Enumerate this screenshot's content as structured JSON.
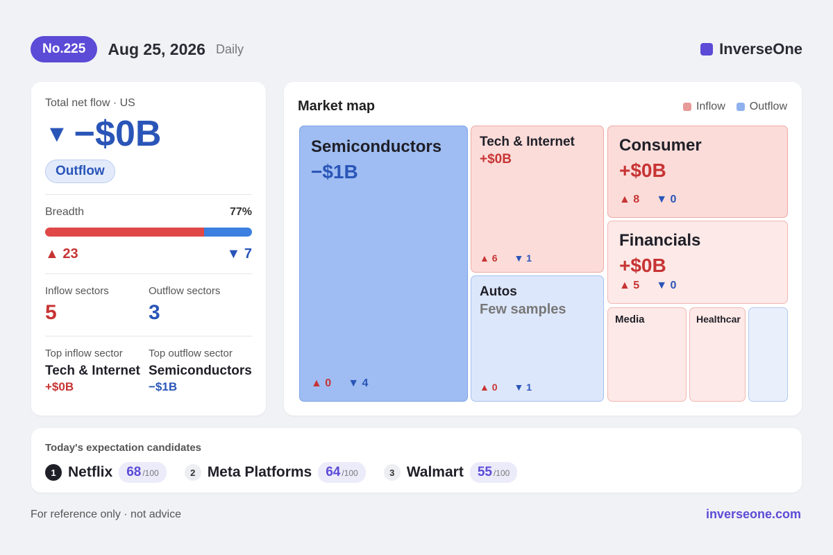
{
  "header": {
    "issue_no": "No.225",
    "date": "Aug 25, 2026",
    "period": "Daily",
    "brand": "InverseOne",
    "brand_color": "#5b4bd6"
  },
  "summary": {
    "label": "Total net flow · US",
    "direction_icon": "triangle-down-icon",
    "arrow": "▼",
    "value": "−$0B",
    "badge": "Outflow",
    "breadth_label": "Breadth",
    "breadth_pct": "77%",
    "breadth_fraction": 0.77,
    "up_arrow": "▲",
    "down_arrow": "▼",
    "up_count": "23",
    "down_count": "7",
    "inflow_sectors_label": "Inflow sectors",
    "inflow_sectors": "5",
    "outflow_sectors_label": "Outflow sectors",
    "outflow_sectors": "3",
    "top_inflow_label": "Top inflow sector",
    "top_inflow_name": "Tech & Internet",
    "top_inflow_value": "+$0B",
    "top_outflow_label": "Top outflow sector",
    "top_outflow_name": "Semiconductors",
    "top_outflow_value": "−$1B",
    "colors": {
      "inflow": "#c73434",
      "outflow": "#2a55b8"
    }
  },
  "market_map": {
    "title": "Market map",
    "legend": [
      {
        "label": "Inflow",
        "color": "#e89a97"
      },
      {
        "label": "Outflow",
        "color": "#8fb1ee"
      }
    ],
    "tiles": [
      {
        "name": "Semiconductors",
        "value": "−$1B",
        "up": "0",
        "down": "4"
      },
      {
        "name": "Tech & Internet",
        "value": "+$0B",
        "up": "6",
        "down": "1"
      },
      {
        "name": "Autos",
        "value": "Few samples",
        "up": "0",
        "down": "1"
      },
      {
        "name": "Consumer",
        "value": "+$0B",
        "up": "8",
        "down": "0"
      },
      {
        "name": "Financials",
        "value": "+$0B",
        "up": "5",
        "down": "0"
      },
      {
        "name": "Media"
      },
      {
        "name": "Healthcar"
      },
      {
        "name": ""
      }
    ]
  },
  "candidates": {
    "title": "Today's expectation candidates",
    "max": "/100",
    "items": [
      {
        "rank": "1",
        "name": "Netflix",
        "score": "68"
      },
      {
        "rank": "2",
        "name": "Meta Platforms",
        "score": "64"
      },
      {
        "rank": "3",
        "name": "Walmart",
        "score": "55"
      }
    ]
  },
  "footer": {
    "disclaimer": "For reference only · not advice",
    "site": "inverseone.com"
  }
}
